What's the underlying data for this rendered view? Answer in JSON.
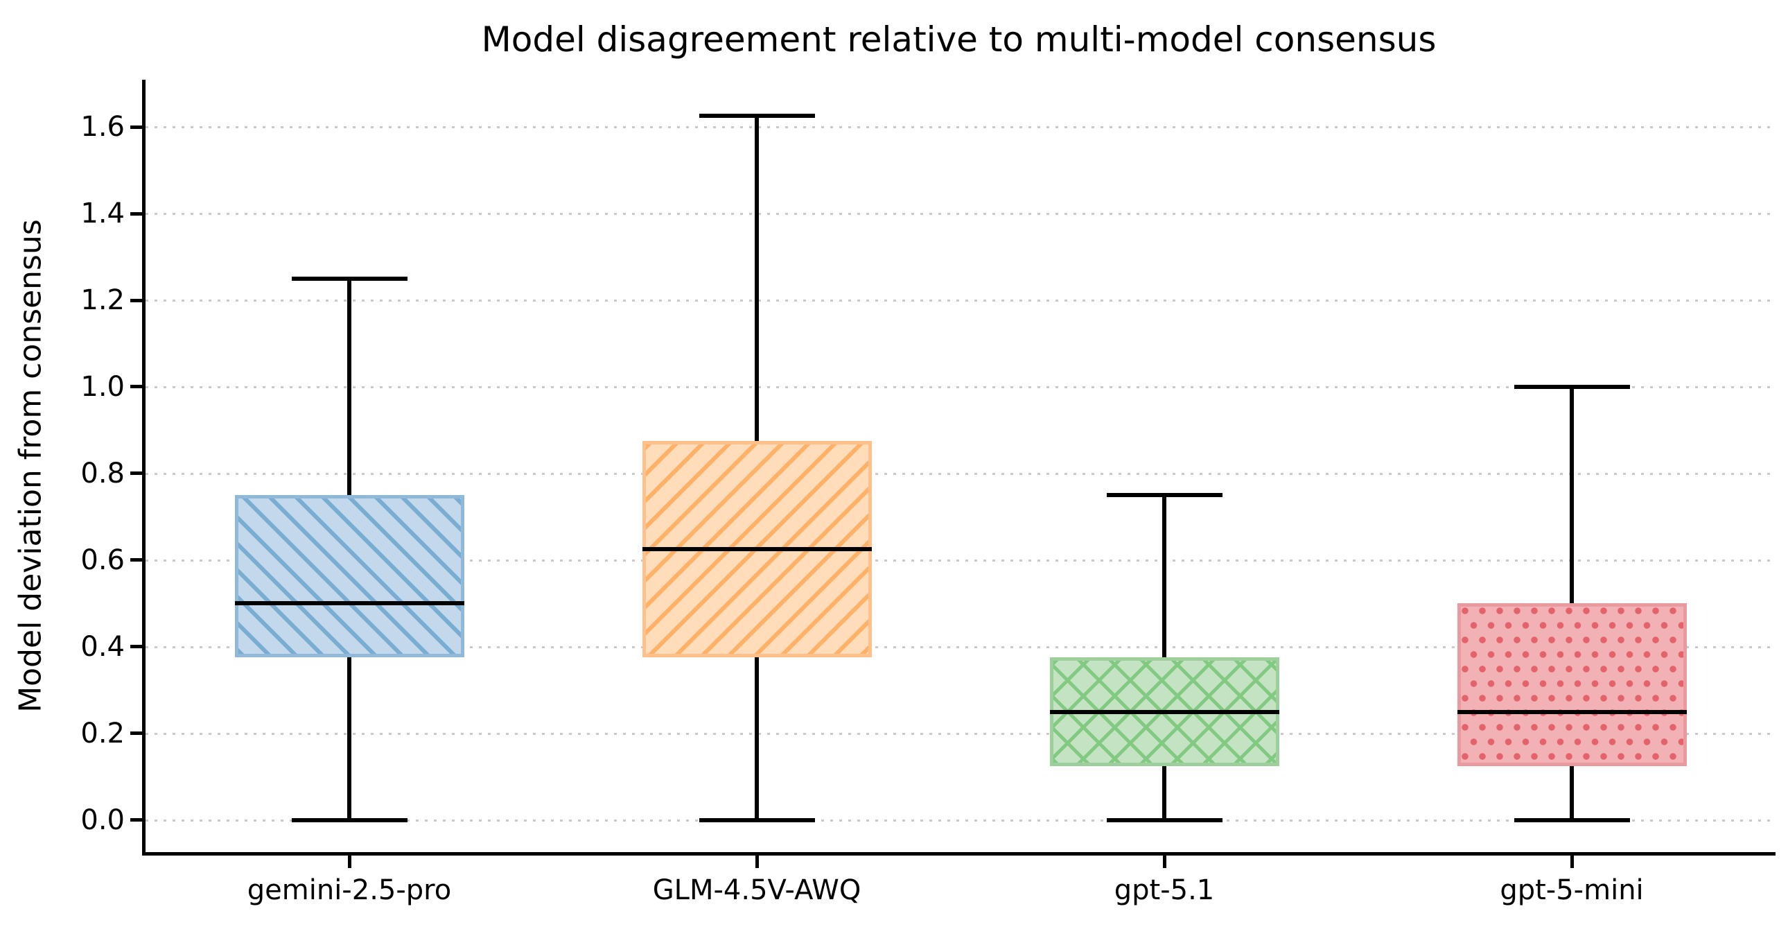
{
  "title": "Model disagreement relative to multi-model consensus",
  "y_axis": {
    "label": "Model deviation from consensus",
    "tick_labels": [
      "0.0",
      "0.2",
      "0.4",
      "0.6",
      "0.8",
      "1.0",
      "1.2",
      "1.4",
      "1.6"
    ]
  },
  "x_axis": {
    "categories": [
      "gemini-2.5-pro",
      "GLM-4.5V-AWQ",
      "gpt-5.1",
      "gpt-5-mini"
    ]
  },
  "chart_data": {
    "type": "boxplot",
    "title": "Model disagreement relative to multi-model consensus",
    "xlabel": "",
    "ylabel": "Model deviation from consensus",
    "ylim": [
      -0.074,
      1.709
    ],
    "yticks": [
      0.0,
      0.2,
      0.4,
      0.6,
      0.8,
      1.0,
      1.2,
      1.4,
      1.6
    ],
    "grid": "horizontal-dotted",
    "legend": "none",
    "categories": [
      "gemini-2.5-pro",
      "GLM-4.5V-AWQ",
      "gpt-5.1",
      "gpt-5-mini"
    ],
    "series": [
      {
        "name": "gemini-2.5-pro",
        "whisker_low": 0.0,
        "q1": 0.375,
        "median": 0.5,
        "q3": 0.75,
        "whisker_high": 1.25,
        "fliers": [],
        "hatch": "/",
        "fill_color": "#c3d8eb",
        "edge_color": "#8fb8d9",
        "hatch_color": "#7aadd2"
      },
      {
        "name": "GLM-4.5V-AWQ",
        "whisker_low": 0.0,
        "q1": 0.375,
        "median": 0.625,
        "q3": 0.875,
        "whisker_high": 1.625,
        "fliers": [],
        "hatch": "\\",
        "fill_color": "#ffdcba",
        "edge_color": "#ffc089",
        "hatch_color": "#ffb267"
      },
      {
        "name": "gpt-5.1",
        "whisker_low": 0.0,
        "q1": 0.125,
        "median": 0.25,
        "q3": 0.375,
        "whisker_high": 0.75,
        "fliers": [],
        "hatch": "x",
        "fill_color": "#c3e3c3",
        "edge_color": "#9ccf9c",
        "hatch_color": "#82c982"
      },
      {
        "name": "gpt-5-mini",
        "whisker_low": 0.0,
        "q1": 0.125,
        "median": 0.25,
        "q3": 0.5,
        "whisker_high": 1.0,
        "fliers": [],
        "hatch": ".",
        "fill_color": "#f2b2b5",
        "edge_color": "#e89a9e",
        "hatch_color": "#e4636b"
      }
    ],
    "colors": {
      "median": "#000000",
      "whisker": "#000000",
      "grid": "#c9c9c9",
      "spine": "#000000",
      "background": "#ffffff",
      "text": "#000000"
    }
  }
}
